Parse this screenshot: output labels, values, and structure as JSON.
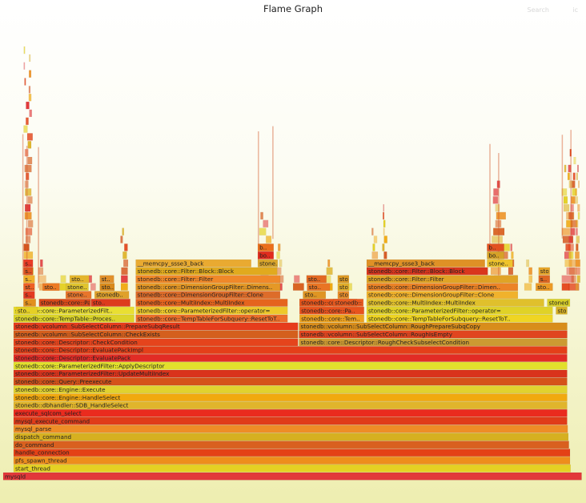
{
  "title": "Flame Graph",
  "search_label": "Search",
  "ic_label": "ic",
  "chart_data": {
    "type": "flame",
    "title": "Flame Graph",
    "frames": [
      {
        "name": "mysqld",
        "x": 0,
        "w": 1,
        "depth": 0,
        "color": "#e2383a"
      },
      {
        "name": "start_thread",
        "x": 0.018,
        "w": 0.963,
        "depth": 1,
        "color": "#e5d123"
      },
      {
        "name": "pfs_spawn_thread",
        "x": 0.018,
        "w": 0.962,
        "depth": 2,
        "color": "#ee8e1c"
      },
      {
        "name": "handle_connection",
        "x": 0.018,
        "w": 0.962,
        "depth": 3,
        "color": "#e44116"
      },
      {
        "name": "do_command",
        "x": 0.018,
        "w": 0.96,
        "depth": 4,
        "color": "#d9601f"
      },
      {
        "name": "dispatch_command",
        "x": 0.018,
        "w": 0.959,
        "depth": 5,
        "color": "#d6b020"
      },
      {
        "name": "mysql_parse",
        "x": 0.018,
        "w": 0.958,
        "depth": 6,
        "color": "#ee8d26"
      },
      {
        "name": "mysql_execute_command",
        "x": 0.018,
        "w": 0.957,
        "depth": 7,
        "color": "#e03c19"
      },
      {
        "name": "execute_sqlcom_select",
        "x": 0.018,
        "w": 0.957,
        "depth": 8,
        "color": "#ea2b1e"
      },
      {
        "name": "stonedb::dbhandler::SDB_HandleSelect",
        "x": 0.018,
        "w": 0.957,
        "depth": 9,
        "color": "#e0b52c"
      },
      {
        "name": "stonedb::core::Engine::HandleSelect",
        "x": 0.018,
        "w": 0.957,
        "depth": 10,
        "color": "#f1a90f"
      },
      {
        "name": "stonedb::core::Engine::Execute",
        "x": 0.018,
        "w": 0.957,
        "depth": 11,
        "color": "#e1d22f"
      },
      {
        "name": "stonedb::core::Query::Preexecute",
        "x": 0.018,
        "w": 0.957,
        "depth": 12,
        "color": "#d5521a"
      },
      {
        "name": "stonedb::core::ParameterizedFilter::UpdateMultiIndex",
        "x": 0.018,
        "w": 0.957,
        "depth": 13,
        "color": "#d9331c"
      },
      {
        "name": "stonedb::core::ParameterizedFilter::ApplyDescriptor",
        "x": 0.018,
        "w": 0.957,
        "depth": 14,
        "color": "#e2df2c"
      },
      {
        "name": "stonedb::core::Descriptor::EvaluatePack",
        "x": 0.018,
        "w": 0.957,
        "depth": 15,
        "color": "#e22c25"
      },
      {
        "name": "stonedb::core::Descriptor::EvaluatePackImpl",
        "x": 0.018,
        "w": 0.957,
        "depth": 16,
        "color": "#e43f19"
      },
      {
        "name": "stonedb::core::Descriptor::CheckCondition",
        "x": 0.018,
        "w": 0.492,
        "depth": 17,
        "color": "#e5441c"
      },
      {
        "name": "stonedb::core::Descriptor::RoughCheckSubselectCondition",
        "x": 0.511,
        "w": 0.464,
        "depth": 17,
        "color": "#cc9a32"
      },
      {
        "name": "stonedb::vcolumn::SubSelectColumn::CheckExists",
        "x": 0.018,
        "w": 0.492,
        "depth": 18,
        "color": "#d45f1d"
      },
      {
        "name": "stonedb::vcolumn::SubSelectColumn::RoughIsEmpty",
        "x": 0.511,
        "w": 0.464,
        "depth": 18,
        "color": "#e0451f"
      },
      {
        "name": "stonedb::vcolumn::SubSelectColumn::PrepareSubqResult",
        "x": 0.018,
        "w": 0.492,
        "depth": 19,
        "color": "#e63c1c"
      },
      {
        "name": "stonedb::vcolumn::SubSelectColumn::RoughPrepareSubqCopy",
        "x": 0.511,
        "w": 0.464,
        "depth": 19,
        "color": "#d88d1b"
      },
      {
        "name": "stonedb::core::TempTable::Proces..",
        "x": 0.018,
        "w": 0.209,
        "depth": 20,
        "color": "#dbd42a"
      },
      {
        "name": "stonedb::core::TempTableForSubquery::ResetToT..",
        "x": 0.229,
        "w": 0.263,
        "depth": 20,
        "color": "#ec6f2b"
      },
      {
        "name": "stonedb::core::TempTableForSubquery::ResetToT..",
        "x": 0.628,
        "w": 0.322,
        "depth": 20,
        "color": "#efd523"
      },
      {
        "name": "stonedb::core::ParameterizedFilt..",
        "x": 0.018,
        "w": 0.209,
        "depth": 21,
        "color": "#e9df32"
      },
      {
        "name": "stonedb::core::ParameterizedFilter::operator=",
        "x": 0.229,
        "w": 0.263,
        "depth": 21,
        "color": "#eec82a"
      },
      {
        "name": "stonedb::core::ParameterizedFilter::operator=",
        "x": 0.628,
        "w": 0.322,
        "depth": 21,
        "color": "#e0d227"
      },
      {
        "name": "stonedb::core::MultiIndex::MultiIndex",
        "x": 0.229,
        "w": 0.263,
        "depth": 22,
        "color": "#e5641e"
      },
      {
        "name": "stonedb::core::MultiIndex::MultiIndex",
        "x": 0.628,
        "w": 0.307,
        "depth": 22,
        "color": "#e0c02c"
      },
      {
        "name": "stonedb::core::DimensionGroupFilter::Clone",
        "x": 0.229,
        "w": 0.25,
        "depth": 23,
        "color": "#dd6c2a"
      },
      {
        "name": "stonedb::core::DimensionGroupFilter::Clone",
        "x": 0.628,
        "w": 0.262,
        "depth": 23,
        "color": "#f0b22c"
      },
      {
        "name": "stonedb::core::DimensionGroupFilter::Dimens..",
        "x": 0.229,
        "w": 0.25,
        "depth": 24,
        "color": "#e59826"
      },
      {
        "name": "stonedb::core::DimensionGroupFilter::Dimen..",
        "x": 0.628,
        "w": 0.262,
        "depth": 24,
        "color": "#ec8326"
      },
      {
        "name": "stonedb::core::Filter::Filter",
        "x": 0.229,
        "w": 0.25,
        "depth": 25,
        "color": "#f08829"
      },
      {
        "name": "stonedb::core::Filter::Filter",
        "x": 0.628,
        "w": 0.262,
        "depth": 25,
        "color": "#e0a426"
      },
      {
        "name": "stonedb::core::Filter::Block::Block",
        "x": 0.229,
        "w": 0.245,
        "depth": 26,
        "color": "#e1aa1e"
      },
      {
        "name": "stonedb::core::Filter::Block::Block",
        "x": 0.628,
        "w": 0.21,
        "depth": 26,
        "color": "#d9361d"
      },
      {
        "name": "__memcpy_ssse3_back",
        "x": 0.229,
        "w": 0.2,
        "depth": 27,
        "color": "#e9aa31"
      },
      {
        "name": "__memcpy_ssse3_back",
        "x": 0.628,
        "w": 0.205,
        "depth": 27,
        "color": "#df9126"
      },
      {
        "name": "sto..",
        "x": 0.022,
        "w": 0.038,
        "depth": 21,
        "color": "#e5d025"
      },
      {
        "name": "stonedb::core::Pa..",
        "x": 0.062,
        "w": 0.09,
        "depth": 22,
        "color": "#d84a1a"
      },
      {
        "name": "sto..",
        "x": 0.152,
        "w": 0.068,
        "depth": 22,
        "color": "#dd3b1d"
      },
      {
        "name": "stone..",
        "x": 0.108,
        "w": 0.045,
        "depth": 23,
        "color": "#e8752b"
      },
      {
        "name": "stonedb..",
        "x": 0.158,
        "w": 0.06,
        "depth": 23,
        "color": "#dfa12b"
      },
      {
        "name": "sto..",
        "x": 0.068,
        "w": 0.03,
        "depth": 24,
        "color": "#ec7a24"
      },
      {
        "name": "stone..",
        "x": 0.108,
        "w": 0.04,
        "depth": 24,
        "color": "#e0c42e"
      },
      {
        "name": "sto..",
        "x": 0.167,
        "w": 0.026,
        "depth": 24,
        "color": "#d98a1c"
      },
      {
        "name": "sto..",
        "x": 0.115,
        "w": 0.034,
        "depth": 25,
        "color": "#e4b52c"
      },
      {
        "name": "st..",
        "x": 0.167,
        "w": 0.025,
        "depth": 25,
        "color": "#e1902b"
      },
      {
        "name": "sto..",
        "x": 0.512,
        "w": 0.045,
        "depth": 22,
        "color": "#e2a127"
      },
      {
        "name": "stonedb::core::Pa..",
        "x": 0.512,
        "w": 0.112,
        "depth": 21,
        "color": "#e8521d"
      },
      {
        "name": "stonedb::core::Tem..",
        "x": 0.512,
        "w": 0.112,
        "depth": 20,
        "color": "#eea21e"
      },
      {
        "name": "stonedb::core::P..",
        "x": 0.512,
        "w": 0.1,
        "depth": 22,
        "color": "#e6551c"
      },
      {
        "name": "sto..",
        "x": 0.518,
        "w": 0.04,
        "depth": 23,
        "color": "#df9523"
      },
      {
        "name": "sto..",
        "x": 0.578,
        "w": 0.02,
        "depth": 23,
        "color": "#e88d2a"
      },
      {
        "name": "stonedb::core::P..",
        "x": 0.57,
        "w": 0.053,
        "depth": 22,
        "color": "#e95a20"
      },
      {
        "name": "sto..",
        "x": 0.578,
        "w": 0.02,
        "depth": 24,
        "color": "#e0ac28"
      },
      {
        "name": "sto..",
        "x": 0.525,
        "w": 0.04,
        "depth": 24,
        "color": "#e97524"
      },
      {
        "name": "sto..",
        "x": 0.524,
        "w": 0.035,
        "depth": 25,
        "color": "#e26923"
      },
      {
        "name": "sto..",
        "x": 0.578,
        "w": 0.02,
        "depth": 25,
        "color": "#dc9a25"
      },
      {
        "name": "stonedb..",
        "x": 0.94,
        "w": 0.04,
        "depth": 22,
        "color": "#d8cf28"
      },
      {
        "name": "stonedb..",
        "x": 0.955,
        "w": 0.02,
        "depth": 21,
        "color": "#d7b024"
      },
      {
        "name": "stone..",
        "x": 0.836,
        "w": 0.045,
        "depth": 27,
        "color": "#efc42c"
      },
      {
        "name": "stone..",
        "x": 0.44,
        "w": 0.035,
        "depth": 27,
        "color": "#dba62b"
      },
      {
        "name": "bo..",
        "x": 0.44,
        "w": 0.028,
        "depth": 28,
        "color": "#e12c1d"
      },
      {
        "name": "b..",
        "x": 0.44,
        "w": 0.028,
        "depth": 29,
        "color": "#eb6f1b"
      },
      {
        "name": "bo..",
        "x": 0.836,
        "w": 0.03,
        "depth": 28,
        "color": "#d6a127"
      },
      {
        "name": "b..",
        "x": 0.836,
        "w": 0.03,
        "depth": 29,
        "color": "#e25120"
      },
      {
        "name": "s..",
        "x": 0.035,
        "w": 0.022,
        "depth": 22,
        "color": "#e2901e"
      },
      {
        "name": "s..",
        "x": 0.035,
        "w": 0.02,
        "depth": 23,
        "color": "#e33b22"
      },
      {
        "name": "st..",
        "x": 0.035,
        "w": 0.02,
        "depth": 24,
        "color": "#ef6125"
      },
      {
        "name": "s..",
        "x": 0.035,
        "w": 0.02,
        "depth": 25,
        "color": "#f1b02c"
      },
      {
        "name": "s..",
        "x": 0.035,
        "w": 0.017,
        "depth": 26,
        "color": "#df5521"
      },
      {
        "name": "s..",
        "x": 0.035,
        "w": 0.017,
        "depth": 27,
        "color": "#ea3d27"
      },
      {
        "name": "sto..",
        "x": 0.92,
        "w": 0.03,
        "depth": 24,
        "color": "#ec9a26"
      },
      {
        "name": "sto..",
        "x": 0.925,
        "w": 0.02,
        "depth": 26,
        "color": "#e6a52a"
      },
      {
        "name": "s..",
        "x": 0.925,
        "w": 0.02,
        "depth": 25,
        "color": "#dd6722"
      }
    ]
  }
}
